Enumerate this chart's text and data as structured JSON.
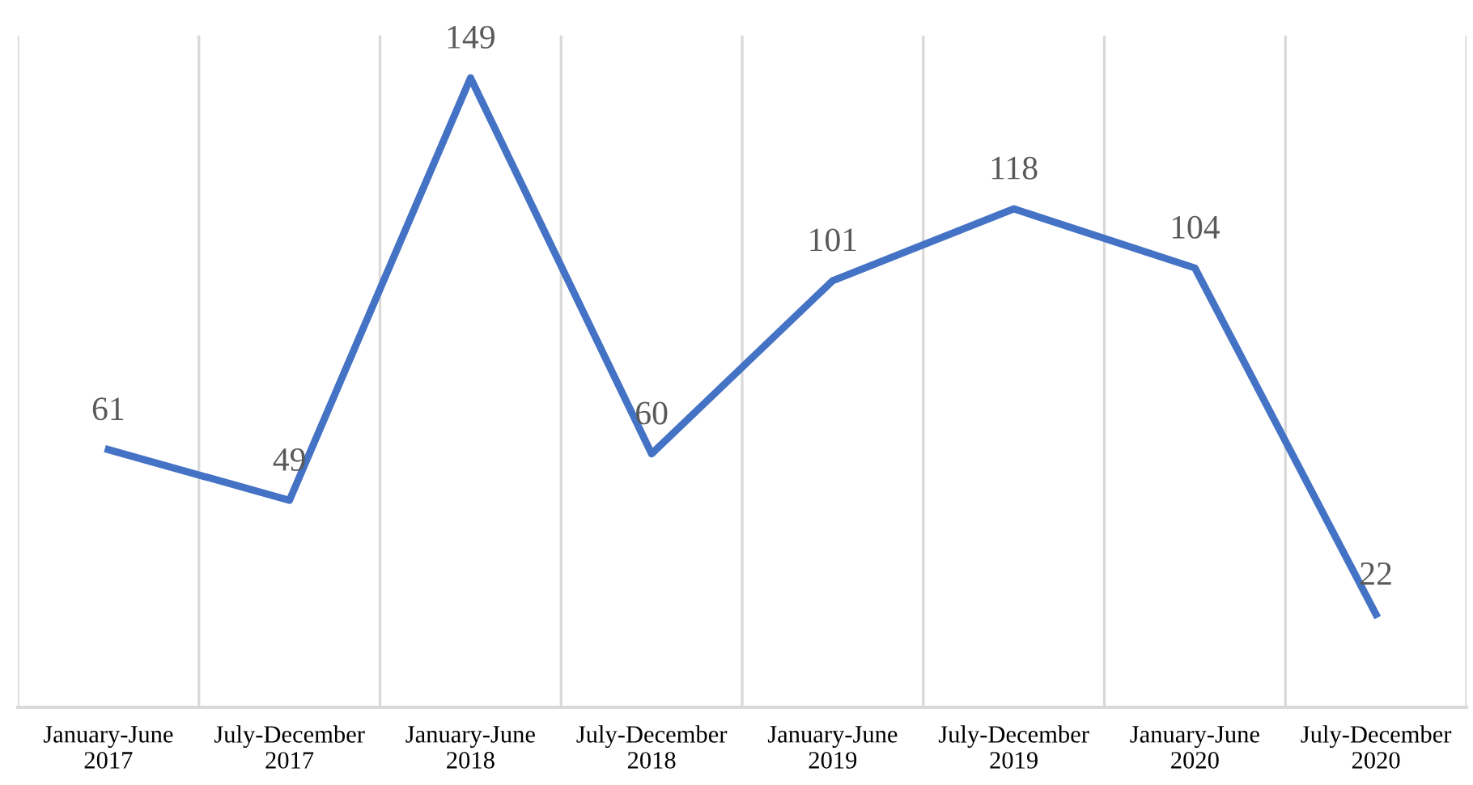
{
  "chart_data": {
    "type": "line",
    "categories": [
      "January-June\n2017",
      "July-December\n2017",
      "January-June\n2018",
      "July-December\n2018",
      "January-June\n2019",
      "July-December\n2019",
      "January-June\n2020",
      "July-December\n2020"
    ],
    "series": [
      {
        "color": "#4472c4",
        "values": [
          61,
          49,
          149,
          60,
          101,
          118,
          104,
          22
        ]
      }
    ],
    "ylim": [
      0,
      159
    ],
    "tick_labels": "x",
    "data_labels": true,
    "grid": "x",
    "marker": "none",
    "line_style": "solid",
    "legend": false
  }
}
